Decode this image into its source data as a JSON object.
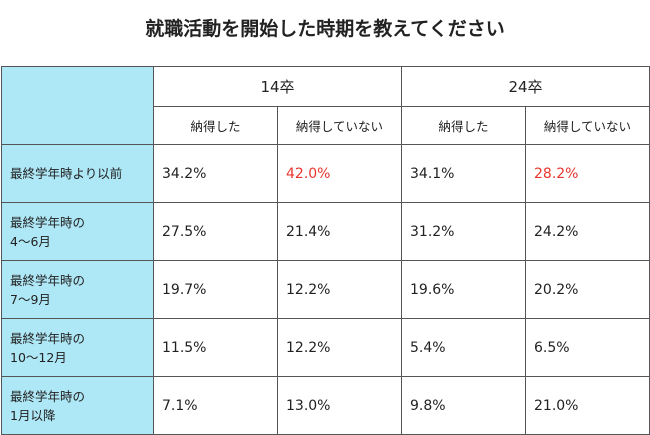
{
  "title": "就職活動を開始した時期を教えてください",
  "groups": [
    "14卒",
    "24卒"
  ],
  "subheaders": [
    "納得した",
    "納得していない",
    "納得した",
    "納得していない"
  ],
  "rows": [
    {
      "label_line1": "最終学年時より以前",
      "label_line2": "",
      "values": [
        "34.2%",
        "42.0%",
        "34.1%",
        "28.2%"
      ]
    },
    {
      "label_line1": "最終学年時の",
      "label_line2": "4～6月",
      "values": [
        "27.5%",
        "21.4%",
        "31.2%",
        "24.2%"
      ]
    },
    {
      "label_line1": "最終学年時の",
      "label_line2": "7～9月",
      "values": [
        "19.7%",
        "12.2%",
        "19.6%",
        "20.2%"
      ]
    },
    {
      "label_line1": "最終学年時の",
      "label_line2": "10～12月",
      "values": [
        "11.5%",
        "12.2%",
        "5.4%",
        "6.5%"
      ]
    },
    {
      "label_line1": "最終学年時の",
      "label_line2": "1月以降",
      "values": [
        "7.1%",
        "13.0%",
        "9.8%",
        "21.0%"
      ]
    }
  ],
  "highlight_color": "#e8362e",
  "header_fill": "#aee7f5"
}
